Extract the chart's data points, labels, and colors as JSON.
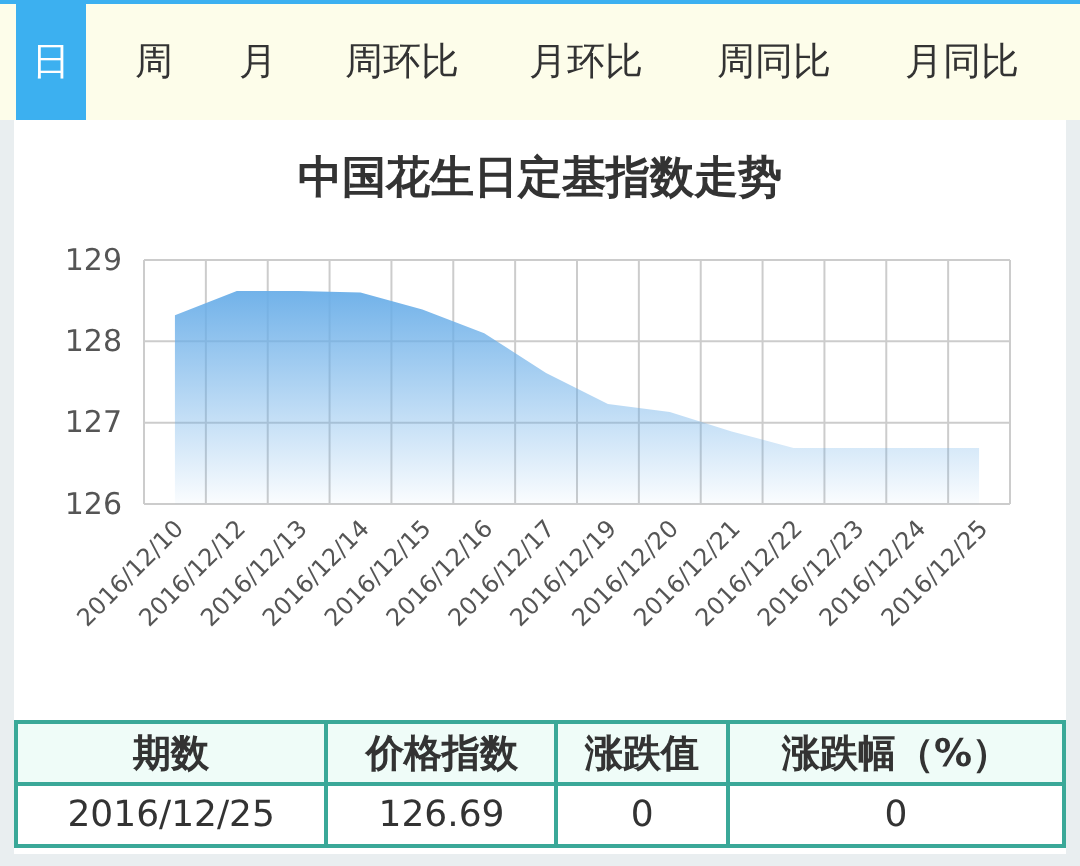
{
  "chart_data": [
    {
      "type": "other",
      "annotations": [
        "日",
        "周",
        "月",
        "周环比",
        "月环比",
        "周同比",
        "月同比"
      ]
    },
    {
      "type": "area",
      "title": "中国花生日定基指数走势",
      "categories": [
        "2016/12/10",
        "2016/12/12",
        "2016/12/13",
        "2016/12/14",
        "2016/12/15",
        "2016/12/16",
        "2016/12/17",
        "2016/12/19",
        "2016/12/20",
        "2016/12/21",
        "2016/12/22",
        "2016/12/23",
        "2016/12/24",
        "2016/12/25"
      ],
      "series": [
        {
          "color": "#6aaee8",
          "values": [
            128.32,
            128.62,
            128.62,
            128.6,
            128.39,
            128.1,
            127.61,
            127.23,
            127.13,
            126.89,
            126.69,
            126.69,
            126.69,
            126.69
          ]
        }
      ],
      "ylim": [
        126,
        129
      ],
      "yticks": [
        126,
        127,
        128,
        129
      ],
      "grid": true
    },
    {
      "type": "other",
      "annotations": [
        "期数",
        "价格指数",
        "涨跌值",
        "涨跌幅（%）",
        "2016/12/25",
        "126.69",
        "0",
        "0"
      ]
    }
  ]
}
